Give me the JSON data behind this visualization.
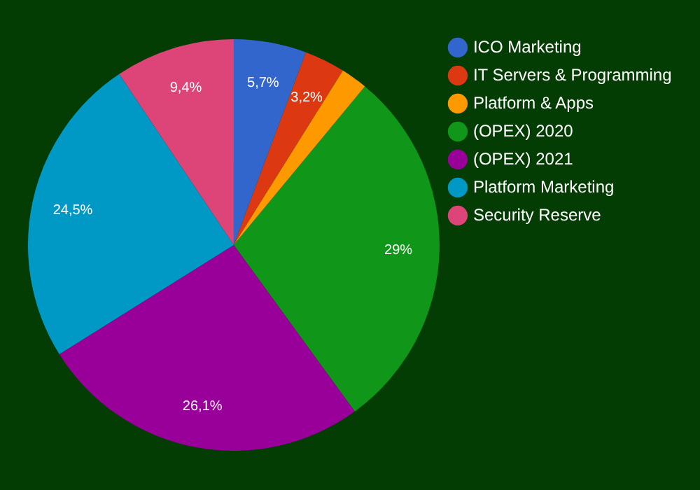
{
  "chart_data": {
    "type": "pie",
    "categories": [
      "ICO Marketing",
      "IT Servers & Programming",
      "Platform & Apps",
      "(OPEX) 2020",
      "(OPEX) 2021",
      "Platform Marketing",
      "Security Reserve"
    ],
    "values": [
      5.7,
      3.2,
      2.1,
      29,
      26.1,
      24.5,
      9.4
    ],
    "value_labels": [
      "5,7%",
      "3,2%",
      null,
      "29%",
      "26,1%",
      "24,5%",
      "9,4%"
    ],
    "colors": [
      "#3366cc",
      "#dc3912",
      "#ff9900",
      "#109618",
      "#990099",
      "#0099c6",
      "#dd4477"
    ],
    "legend": "top right"
  }
}
